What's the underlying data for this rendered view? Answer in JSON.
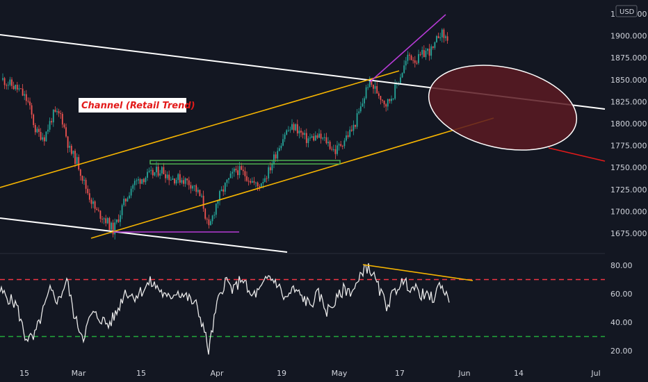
{
  "chart_data": [
    {
      "type": "candlestick",
      "currency": "USD",
      "annotation": "Channel (Retail Trend)",
      "ylim": [
        1655,
        1935
      ],
      "y_ticks": [
        "1675.000",
        "1700.000",
        "1725.000",
        "1750.000",
        "1775.000",
        "1800.000",
        "1825.000",
        "1850.000",
        "1875.000",
        "1900.000",
        "1925.000"
      ],
      "y_tick_values": [
        1675,
        1700,
        1725,
        1750,
        1775,
        1800,
        1825,
        1850,
        1875,
        1900,
        1925
      ],
      "x_ticks": [
        "15",
        "Mar",
        "15",
        "Apr",
        "19",
        "May",
        "17",
        "Jun",
        "14",
        "Jul"
      ],
      "channel_color": "#ffffff",
      "trend_color": "#f7b500",
      "support_color": "#4caf50",
      "divergence_color": "#b73bd6",
      "projection_color": "#e31a1a",
      "up_color": "#26a69a",
      "down_color": "#ef5350",
      "zone_fill": "#5c1a22"
    },
    {
      "type": "line",
      "indicator": "oscillator",
      "ylim": [
        12,
        86
      ],
      "y_ticks": [
        "20.00",
        "40.00",
        "60.00",
        "80.00"
      ],
      "y_tick_values": [
        20,
        40,
        60,
        80
      ],
      "upper_level": 70,
      "lower_level": 30,
      "upper_color": "#f23645",
      "lower_color": "#22ab3c",
      "line_color": "#e8e8e8",
      "trendline_color": "#f7b500"
    }
  ]
}
